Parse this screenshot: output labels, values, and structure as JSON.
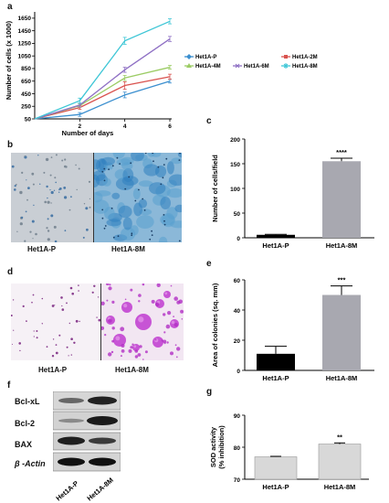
{
  "panel_letters": {
    "a": "a",
    "b": "b",
    "c": "c",
    "d": "d",
    "e": "e",
    "f": "f",
    "g": "g"
  },
  "image_captions": {
    "b_left": "Het1A-P",
    "b_right": "Het1A-8M",
    "d_left": "Het1A-P",
    "d_right": "Het1A-8M"
  },
  "blot": {
    "bands": [
      "Bcl-xL",
      "Bcl-2",
      "BAX",
      "β -Actin"
    ],
    "lanes": [
      "Het1A-P",
      "Het1A-8M"
    ]
  },
  "colors": {
    "P": "#3b8fcf",
    "2M": "#d9534f",
    "4M": "#9ccc65",
    "6M": "#8e6fc4",
    "8M": "#3ec6d6",
    "bar_dark": "#000000",
    "bar_grey": "#a8a8b0",
    "bar_light": "#d8d8d8"
  },
  "chart_data": [
    {
      "id": "a",
      "type": "line",
      "xlabel": "Number of days",
      "ylabel": "Number of cells (x 1000)",
      "xticks": [
        2,
        4,
        6
      ],
      "yticks": [
        50,
        250,
        450,
        650,
        850,
        1050,
        1250,
        1450,
        1650
      ],
      "xlim": [
        0,
        6
      ],
      "ylim": [
        50,
        1750
      ],
      "grid": false,
      "legend_position": "right",
      "x": [
        0,
        2,
        4,
        6
      ],
      "series": [
        {
          "name": "Het1A-P",
          "color_key": "P",
          "values": [
            50,
            120,
            430,
            650
          ]
        },
        {
          "name": "Het1A-2M",
          "color_key": "2M",
          "values": [
            50,
            230,
            580,
            720
          ]
        },
        {
          "name": "Het1A-4M",
          "color_key": "4M",
          "values": [
            50,
            260,
            700,
            870
          ]
        },
        {
          "name": "Het1A-6M",
          "color_key": "6M",
          "values": [
            50,
            270,
            830,
            1320
          ]
        },
        {
          "name": "Het1A-8M",
          "color_key": "8M",
          "values": [
            50,
            340,
            1290,
            1600
          ]
        }
      ],
      "errors": [
        [
          0,
          30,
          45,
          30
        ],
        [
          0,
          30,
          60,
          40
        ],
        [
          0,
          25,
          40,
          30
        ],
        [
          0,
          30,
          40,
          40
        ],
        [
          0,
          40,
          55,
          40
        ]
      ]
    },
    {
      "id": "c",
      "type": "bar",
      "categories": [
        "Het1A-P",
        "Het1A-8M"
      ],
      "values": [
        6,
        155
      ],
      "errors": [
        1,
        6
      ],
      "ylabel": "Number of cells/field",
      "ylim": [
        0,
        200
      ],
      "yticks": [
        0,
        50,
        100,
        150,
        200
      ],
      "annotation": "****",
      "fill_keys": [
        "bar_dark",
        "bar_grey"
      ]
    },
    {
      "id": "e",
      "type": "bar",
      "categories": [
        "Het1A-P",
        "Het1A-8M"
      ],
      "values": [
        11,
        50
      ],
      "errors": [
        5,
        6
      ],
      "ylabel": "Area of colonies (sq. mm)",
      "ylim": [
        0,
        60
      ],
      "yticks": [
        0,
        20,
        40,
        60
      ],
      "annotation": "***",
      "fill_keys": [
        "bar_dark",
        "bar_grey"
      ]
    },
    {
      "id": "g",
      "type": "bar",
      "categories": [
        "Het1A-P",
        "Het1A-8M"
      ],
      "values": [
        77,
        81
      ],
      "errors": [
        0.15,
        0.35
      ],
      "ylabel": "SOD activity (% inhibition)",
      "ylim": [
        70,
        90
      ],
      "yticks": [
        70,
        80,
        90
      ],
      "annotation": "**",
      "fill_keys": [
        "bar_light",
        "bar_light"
      ]
    }
  ]
}
